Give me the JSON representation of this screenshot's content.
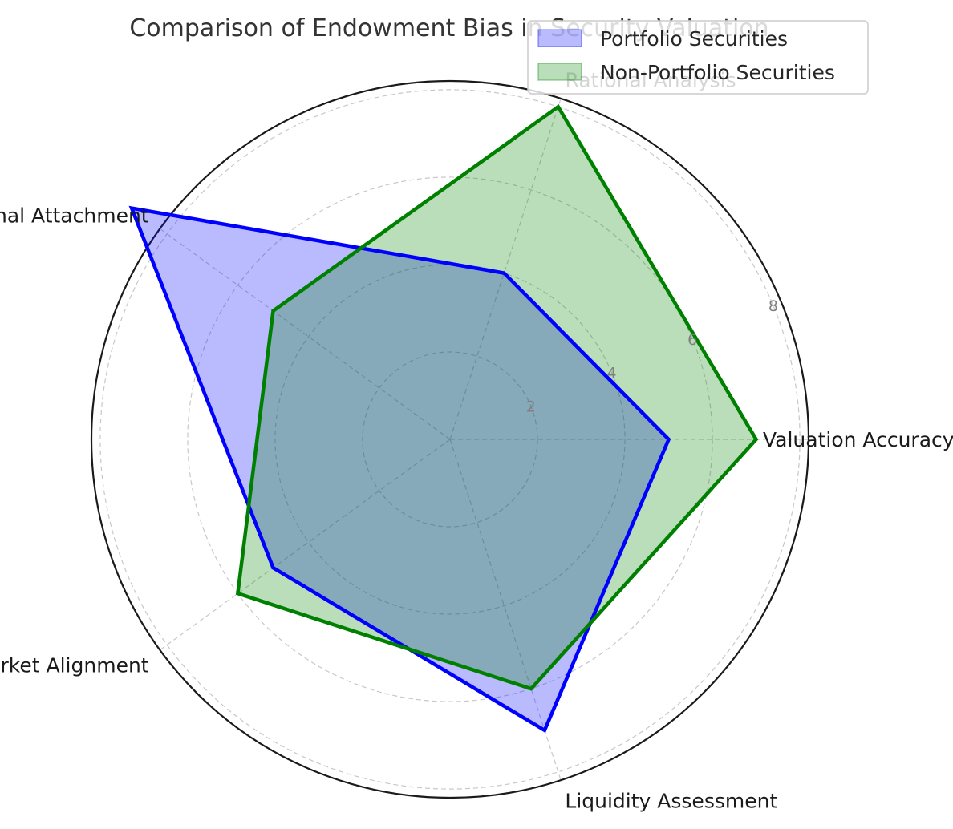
{
  "chart_data": {
    "type": "radar",
    "title": "Comparison of Endowment Bias in Security Valuation",
    "axes": [
      "Valuation Accuracy",
      "Rational Analysis",
      "Emotional Attachment",
      "Market Alignment",
      "Liquidity Assessment"
    ],
    "rlim": [
      0,
      8.2
    ],
    "rticks": [
      2,
      4,
      6,
      8
    ],
    "grid": true,
    "legend_position": "top-right",
    "series": [
      {
        "name": "Portfolio Securities",
        "values": [
          5,
          4,
          9,
          5,
          7
        ],
        "color": "#0000ff",
        "fill": "#bbbbff"
      },
      {
        "name": "Non-Portfolio Securities",
        "values": [
          7,
          8,
          5,
          6,
          6
        ],
        "color": "#008000",
        "fill": "#c0dfc0"
      }
    ]
  }
}
